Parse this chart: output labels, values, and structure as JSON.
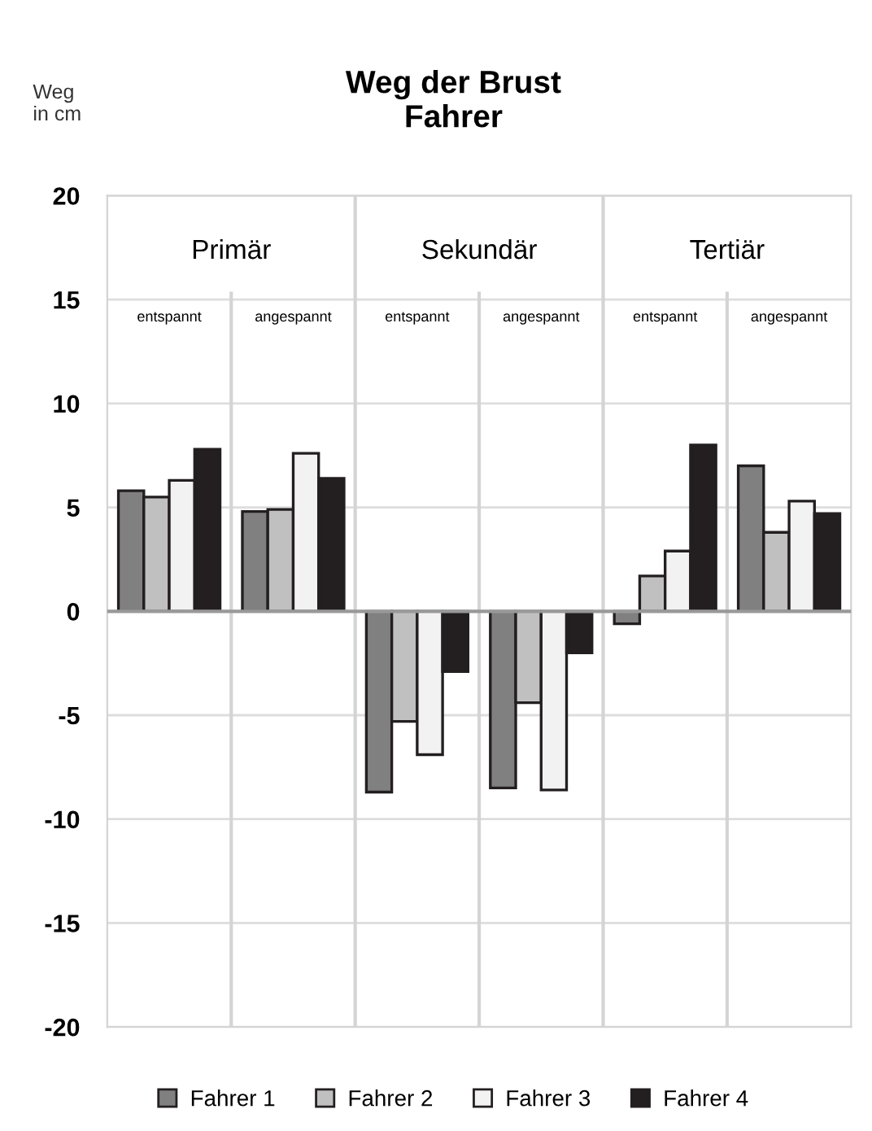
{
  "chart_data": {
    "type": "bar",
    "title": "Weg der Brust\nFahrer",
    "ylabel": "Weg\nin cm",
    "categories": [
      "entspannt",
      "angespannt",
      "entspannt",
      "angespannt",
      "entspannt",
      "angespannt"
    ],
    "annotations": [
      "Primär",
      "Sekundär",
      "Tertiär"
    ],
    "series": [
      {
        "name": "Fahrer 1",
        "color": "#808080",
        "values": [
          5.8,
          4.8,
          -8.7,
          -8.5,
          -0.6,
          7.0
        ]
      },
      {
        "name": "Fahrer 2",
        "color": "#c0c0c0",
        "values": [
          5.5,
          4.9,
          -5.3,
          -4.4,
          1.7,
          3.8
        ]
      },
      {
        "name": "Fahrer 3",
        "color": "#f2f2f2",
        "values": [
          6.3,
          7.6,
          -6.9,
          -8.6,
          2.9,
          5.3
        ]
      },
      {
        "name": "Fahrer 4",
        "color": "#231f20",
        "values": [
          7.8,
          6.4,
          -2.9,
          -2.0,
          8.0,
          4.7
        ]
      }
    ],
    "ylim": [
      -20,
      20
    ],
    "yticks": [
      20,
      15,
      10,
      5,
      0,
      -5,
      -10,
      -15,
      -20
    ],
    "grid": true,
    "legend": "bottom"
  }
}
